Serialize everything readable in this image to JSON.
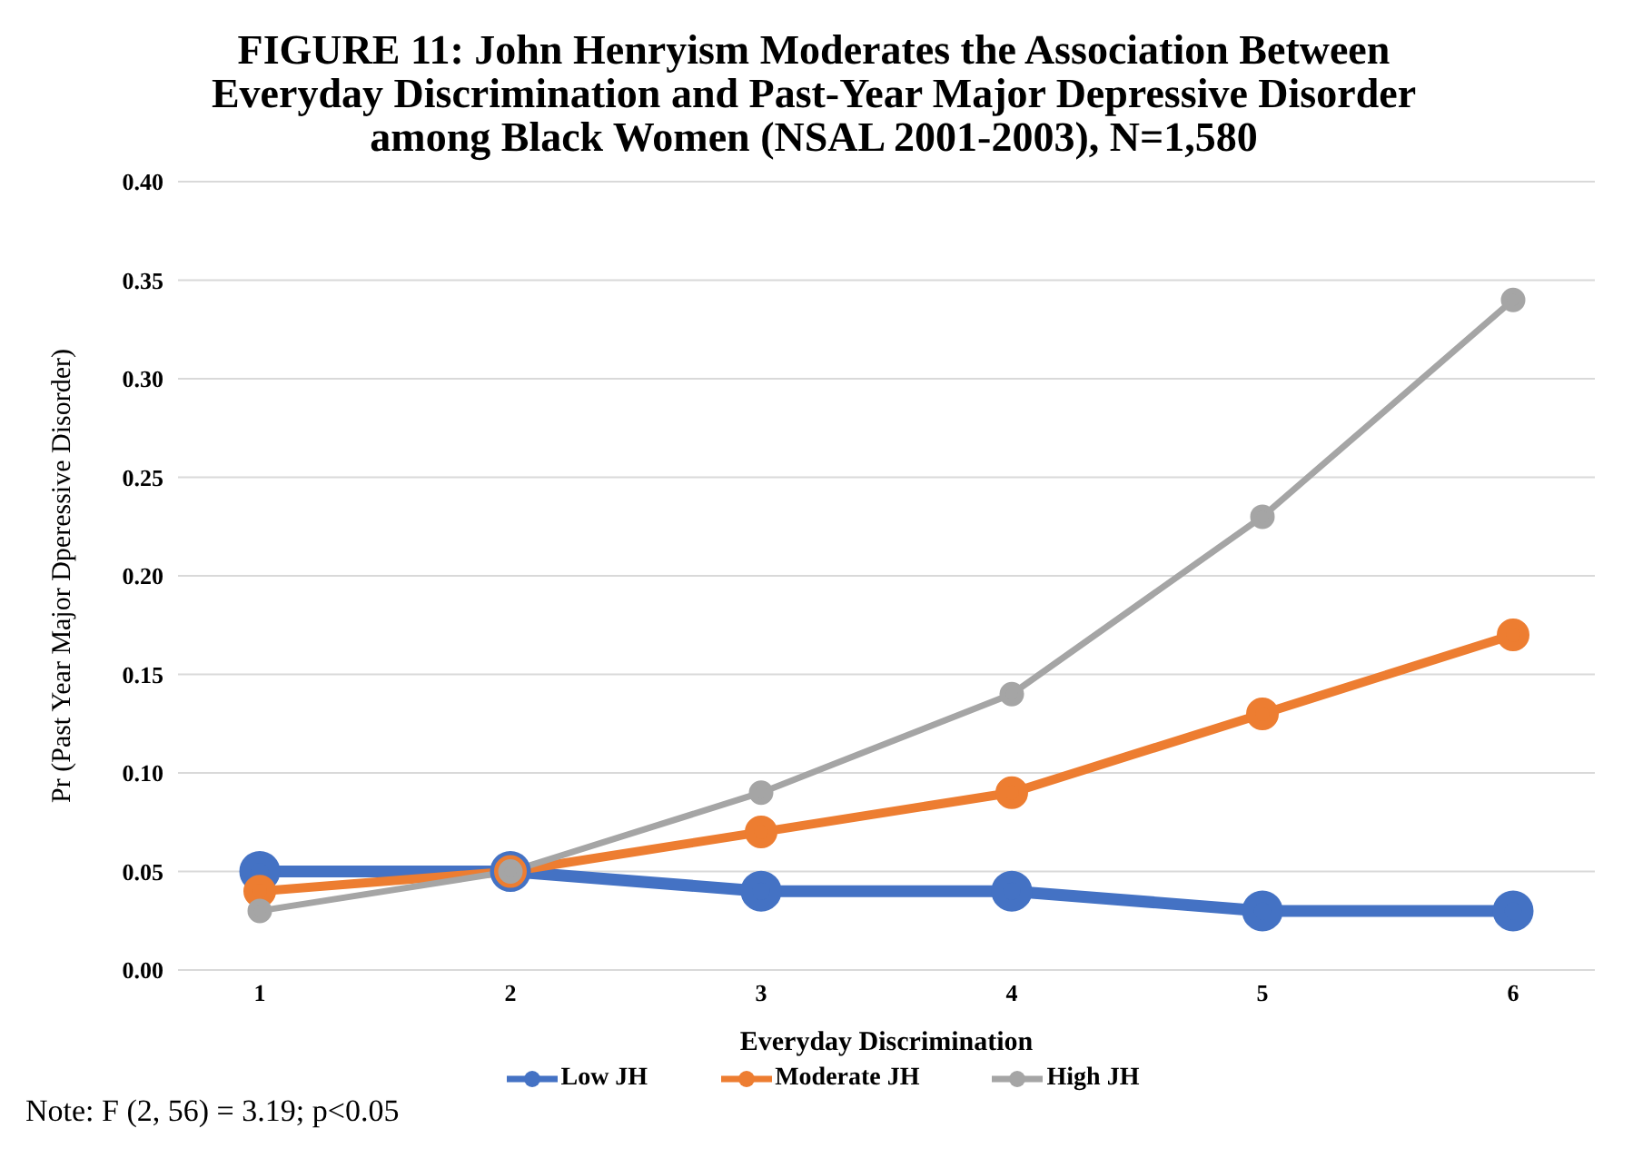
{
  "chart_data": {
    "type": "line",
    "title": "FIGURE 11: John Henryism Moderates the Association Between Everyday Discrimination and Past-Year Major Depressive Disorder among Black Women  (NSAL 2001-2003), N=1,580",
    "xlabel": "Everyday Discrimination",
    "ylabel": "Pr (Past Year Major Dperessive Disorder)",
    "categories": [
      "1",
      "2",
      "3",
      "4",
      "5",
      "6"
    ],
    "series": [
      {
        "name": "Low JH",
        "color": "#4472c4",
        "values": [
          0.05,
          0.05,
          0.04,
          0.04,
          0.03,
          0.03
        ]
      },
      {
        "name": "Moderate JH",
        "color": "#ed7d31",
        "values": [
          0.04,
          0.05,
          0.07,
          0.09,
          0.13,
          0.17
        ]
      },
      {
        "name": "High JH",
        "color": "#a5a5a5",
        "values": [
          0.03,
          0.05,
          0.09,
          0.14,
          0.23,
          0.34
        ]
      }
    ],
    "ylim": [
      0,
      0.4
    ],
    "yticks": [
      {
        "value": 0,
        "label": "0.00"
      },
      {
        "value": 0.05,
        "label": "0.05"
      },
      {
        "value": 0.1,
        "label": "0.10"
      },
      {
        "value": 0.15,
        "label": "0.15"
      },
      {
        "value": 0.2,
        "label": "0.20"
      },
      {
        "value": 0.25,
        "label": "0.25"
      },
      {
        "value": 0.3,
        "label": "0.30"
      },
      {
        "value": 0.35,
        "label": "0.35"
      },
      {
        "value": 0.4,
        "label": "0.40"
      }
    ],
    "grid": "y",
    "legend": "bottom",
    "marker": "circle",
    "line_style": "solid",
    "annotations": [
      "Note: F (2, 56) = 3.19; p<0.05"
    ]
  }
}
